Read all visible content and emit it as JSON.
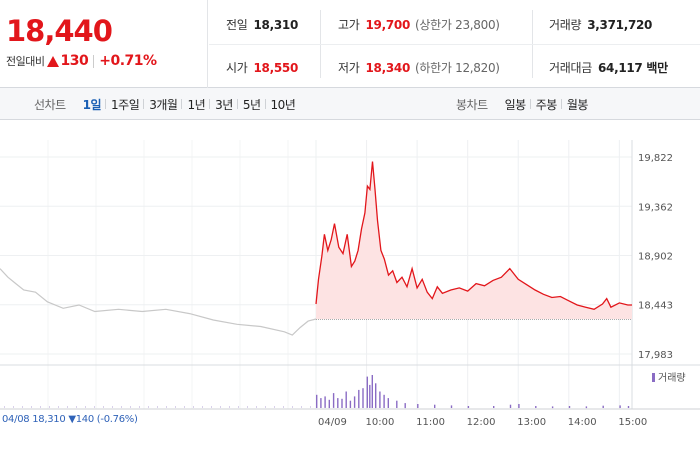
{
  "quote": {
    "price": "18,440",
    "change_label": "전일대비",
    "change_value": "130",
    "change_percent": "+0.71%",
    "stats": {
      "prev_close": {
        "label": "전일",
        "value": "18,310"
      },
      "high": {
        "label": "고가",
        "value": "19,700",
        "sub": "(상한가 23,800)"
      },
      "volume": {
        "label": "거래량",
        "value": "3,371,720"
      },
      "open": {
        "label": "시가",
        "value": "18,550"
      },
      "low": {
        "label": "저가",
        "value": "18,340",
        "sub": "(하한가 12,820)"
      },
      "amount": {
        "label": "거래대금",
        "value": "64,117 백만"
      }
    },
    "colors": {
      "up": "#e2161b",
      "down": "#2f62b8",
      "volume": "#8a6cc4"
    }
  },
  "toolbar": {
    "line_title": "선차트",
    "line_periods": [
      "1일",
      "1주일",
      "3개월",
      "1년",
      "3년",
      "5년",
      "10년"
    ],
    "active_period": "1일",
    "candle_title": "봉차트",
    "candle_periods": [
      "일봉",
      "주봉",
      "월봉"
    ]
  },
  "footer": {
    "prev_date": "04/08",
    "prev_close": "18,310",
    "prev_change": "▼140",
    "prev_pct": "(-0.76%)"
  },
  "chart_data": {
    "type": "line",
    "title": "",
    "xlabel": "",
    "ylabel": "",
    "ylim": [
      17983,
      19822
    ],
    "y_ticks": [
      "19,822",
      "19,362",
      "18,902",
      "18,443",
      "17,983"
    ],
    "y_tick_values": [
      19822,
      19362,
      18902,
      18443,
      17983
    ],
    "x_ticks": [
      "04/09",
      "10:00",
      "11:00",
      "12:00",
      "13:00",
      "14:00",
      "15:00"
    ],
    "x_tick_times": [
      "09:00",
      "10:00",
      "11:00",
      "12:00",
      "13:00",
      "14:00",
      "15:00"
    ],
    "grid": true,
    "reference_line": 18310,
    "previous_day": {
      "date": "04/08",
      "points": [
        [
          "09:00",
          18780
        ],
        [
          "09:10",
          18700
        ],
        [
          "09:20",
          18640
        ],
        [
          "09:30",
          18580
        ],
        [
          "09:45",
          18560
        ],
        [
          "10:00",
          18470
        ],
        [
          "10:20",
          18410
        ],
        [
          "10:40",
          18440
        ],
        [
          "11:00",
          18380
        ],
        [
          "11:30",
          18400
        ],
        [
          "12:00",
          18380
        ],
        [
          "12:30",
          18400
        ],
        [
          "13:00",
          18360
        ],
        [
          "13:30",
          18300
        ],
        [
          "14:00",
          18260
        ],
        [
          "14:30",
          18240
        ],
        [
          "15:00",
          18190
        ],
        [
          "15:10",
          18160
        ],
        [
          "15:20",
          18230
        ],
        [
          "15:30",
          18290
        ],
        [
          "15:40",
          18310
        ]
      ]
    },
    "series": [
      {
        "name": "",
        "points": [
          [
            "09:00",
            18450
          ],
          [
            "09:03",
            18680
          ],
          [
            "09:07",
            18900
          ],
          [
            "09:10",
            19100
          ],
          [
            "09:14",
            18950
          ],
          [
            "09:18",
            19050
          ],
          [
            "09:22",
            19200
          ],
          [
            "09:27",
            18980
          ],
          [
            "09:32",
            18920
          ],
          [
            "09:37",
            19100
          ],
          [
            "09:42",
            18800
          ],
          [
            "09:46",
            18850
          ],
          [
            "09:50",
            18950
          ],
          [
            "09:54",
            19150
          ],
          [
            "09:58",
            19300
          ],
          [
            "10:01",
            19550
          ],
          [
            "10:04",
            19520
          ],
          [
            "10:07",
            19780
          ],
          [
            "10:10",
            19520
          ],
          [
            "10:13",
            19230
          ],
          [
            "10:17",
            18950
          ],
          [
            "10:21",
            18870
          ],
          [
            "10:26",
            18720
          ],
          [
            "10:31",
            18760
          ],
          [
            "10:36",
            18650
          ],
          [
            "10:42",
            18700
          ],
          [
            "10:48",
            18610
          ],
          [
            "10:54",
            18780
          ],
          [
            "11:00",
            18600
          ],
          [
            "11:06",
            18680
          ],
          [
            "11:12",
            18560
          ],
          [
            "11:18",
            18500
          ],
          [
            "11:24",
            18610
          ],
          [
            "11:30",
            18550
          ],
          [
            "11:40",
            18580
          ],
          [
            "11:50",
            18600
          ],
          [
            "12:00",
            18570
          ],
          [
            "12:10",
            18640
          ],
          [
            "12:20",
            18620
          ],
          [
            "12:30",
            18670
          ],
          [
            "12:40",
            18700
          ],
          [
            "12:50",
            18780
          ],
          [
            "13:00",
            18680
          ],
          [
            "13:10",
            18630
          ],
          [
            "13:20",
            18580
          ],
          [
            "13:30",
            18540
          ],
          [
            "13:40",
            18510
          ],
          [
            "13:50",
            18520
          ],
          [
            "14:00",
            18480
          ],
          [
            "14:10",
            18440
          ],
          [
            "14:20",
            18420
          ],
          [
            "14:30",
            18400
          ],
          [
            "14:40",
            18450
          ],
          [
            "14:45",
            18500
          ],
          [
            "14:50",
            18420
          ],
          [
            "15:00",
            18460
          ],
          [
            "15:10",
            18440
          ],
          [
            "15:15",
            18440
          ]
        ]
      }
    ],
    "volume_legend": "거래량",
    "volume": [
      [
        "09:00",
        40
      ],
      [
        "09:05",
        30
      ],
      [
        "09:10",
        35
      ],
      [
        "09:15",
        25
      ],
      [
        "09:20",
        45
      ],
      [
        "09:25",
        30
      ],
      [
        "09:30",
        28
      ],
      [
        "09:35",
        50
      ],
      [
        "09:40",
        22
      ],
      [
        "09:45",
        35
      ],
      [
        "09:50",
        55
      ],
      [
        "09:55",
        60
      ],
      [
        "10:00",
        95
      ],
      [
        "10:03",
        70
      ],
      [
        "10:06",
        100
      ],
      [
        "10:10",
        75
      ],
      [
        "10:15",
        50
      ],
      [
        "10:20",
        40
      ],
      [
        "10:25",
        30
      ],
      [
        "10:35",
        22
      ],
      [
        "10:45",
        15
      ],
      [
        "11:00",
        12
      ],
      [
        "11:20",
        10
      ],
      [
        "11:40",
        8
      ],
      [
        "12:00",
        6
      ],
      [
        "12:30",
        6
      ],
      [
        "12:50",
        10
      ],
      [
        "13:00",
        12
      ],
      [
        "13:20",
        6
      ],
      [
        "13:40",
        5
      ],
      [
        "14:00",
        6
      ],
      [
        "14:20",
        5
      ],
      [
        "14:40",
        7
      ],
      [
        "15:00",
        8
      ],
      [
        "15:10",
        6
      ]
    ]
  }
}
